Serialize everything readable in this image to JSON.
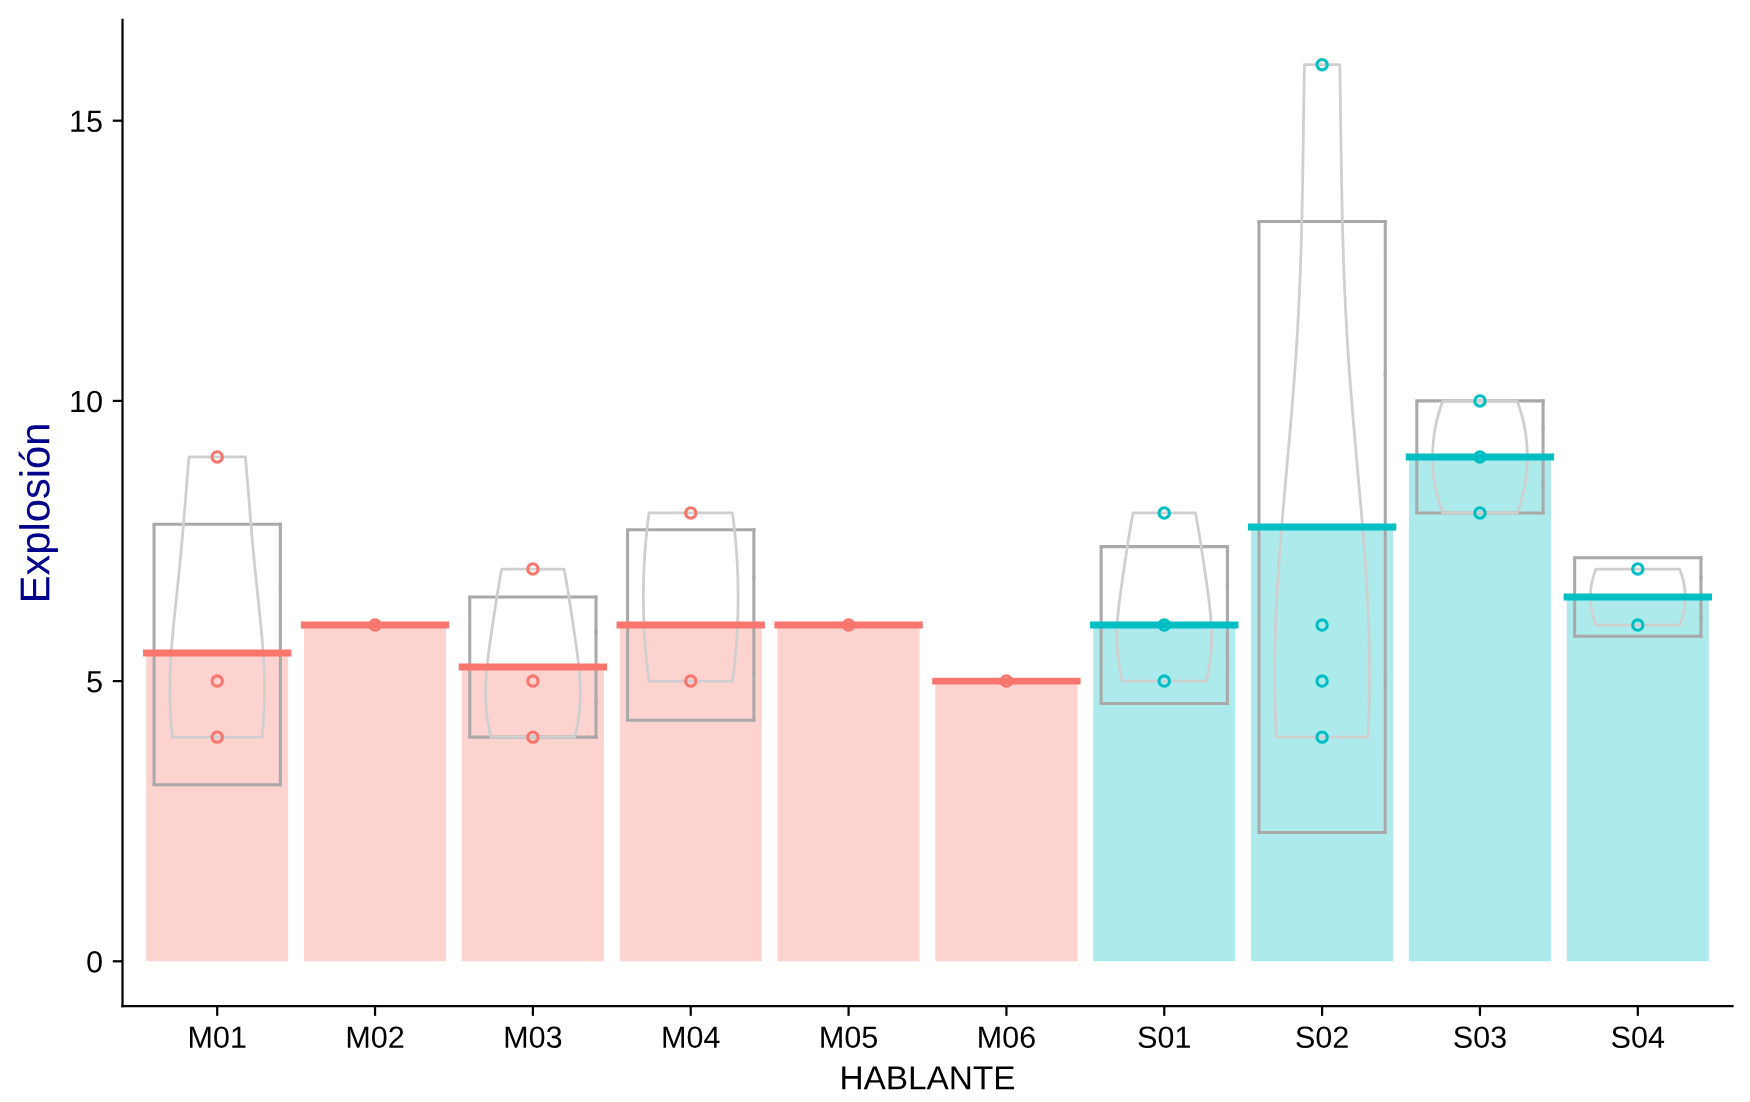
{
  "chart_data": {
    "type": "bar",
    "xlabel": "HABLANTE",
    "ylabel": "Explosión",
    "categories": [
      "M01",
      "M02",
      "M03",
      "M04",
      "M05",
      "M06",
      "S01",
      "S02",
      "S03",
      "S04"
    ],
    "ylim": [
      -0.8,
      16.8
    ],
    "yticks": [
      0,
      5,
      10,
      15
    ],
    "grid": false,
    "legend": false,
    "series": [
      {
        "values": [
          5.5,
          6,
          5.25,
          6,
          6,
          5,
          6,
          7.75,
          9,
          6.5
        ],
        "colors": [
          "#f8766d",
          "#f8766d",
          "#f8766d",
          "#f8766d",
          "#f8766d",
          "#f8766d",
          "#00bfc4",
          "#00bfc4",
          "#00bfc4",
          "#00bfc4"
        ],
        "errors": [
          [
            3.15,
            7.8
          ],
          null,
          [
            4,
            6.5
          ],
          [
            4.3,
            7.7
          ],
          null,
          null,
          [
            4.6,
            7.4
          ],
          [
            2.3,
            13.2
          ],
          [
            8,
            10
          ],
          [
            5.8,
            7.2
          ]
        ]
      },
      {
        "type": "scatter",
        "marker": "circle",
        "x": [
          "M01",
          "M01",
          "M01",
          "M02",
          "M03",
          "M03",
          "M03",
          "M04",
          "M04",
          "M05",
          "M06",
          "S01",
          "S01",
          "S01",
          "S02",
          "S02",
          "S02",
          "S02",
          "S03",
          "S03",
          "S03",
          "S04",
          "S04"
        ],
        "values": [
          9,
          5,
          4,
          6,
          7,
          5,
          4,
          8,
          5,
          6,
          5,
          8,
          6,
          5,
          16,
          6,
          5,
          4,
          10,
          9,
          8,
          7,
          6
        ],
        "colors": [
          "#f8766d",
          "#f8766d",
          "#f8766d",
          "#f8766d",
          "#f8766d",
          "#f8766d",
          "#f8766d",
          "#f8766d",
          "#f8766d",
          "#f8766d",
          "#f8766d",
          "#00bfc4",
          "#00bfc4",
          "#00bfc4",
          "#00bfc4",
          "#00bfc4",
          "#00bfc4",
          "#00bfc4",
          "#00bfc4",
          "#00bfc4",
          "#00bfc4",
          "#00bfc4",
          "#00bfc4"
        ]
      }
    ]
  }
}
